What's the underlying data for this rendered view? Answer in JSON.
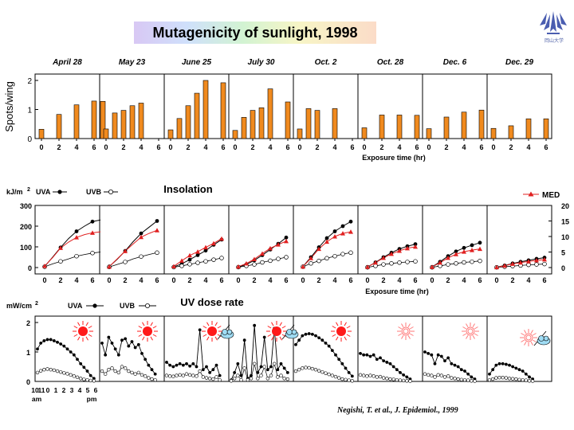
{
  "title": "Mutagenicity of sunlight, 1998",
  "logo_text": "岡山大学",
  "citation": "Negishi, T. et al., J. Epidemiol., 1999",
  "colors": {
    "bar": "#f08a1e",
    "uva": "#000000",
    "uvb": "#000000",
    "med": "#e02020",
    "sun_red": "#ff1a1a",
    "sun_pink": "#ff7a7a",
    "cloud": "#9fdcf4"
  },
  "chart_data": [
    {
      "type": "bar",
      "ylabel": "Spots/wing",
      "xlabel": "Exposure time  (hr)",
      "ylim": [
        0,
        2.2
      ],
      "yticks": [
        "2",
        "1",
        "0"
      ],
      "xticks": [
        "0",
        "2",
        "4",
        "6"
      ],
      "panels": [
        {
          "label": "April 28",
          "x": [
            0,
            2,
            4,
            6,
            7
          ],
          "values": [
            0.32,
            0.83,
            1.16,
            1.29,
            1.28
          ]
        },
        {
          "label": "May 23",
          "x": [
            0,
            1,
            2,
            3,
            4
          ],
          "values": [
            0.33,
            0.88,
            0.97,
            1.13,
            1.22
          ]
        },
        {
          "label": "June 25",
          "x": [
            0,
            1,
            2,
            3,
            4,
            6
          ],
          "values": [
            0.3,
            0.69,
            1.13,
            1.56,
            2.0,
            1.92
          ]
        },
        {
          "label": "July 30",
          "x": [
            0,
            1,
            2,
            3,
            4,
            6
          ],
          "values": [
            0.28,
            0.73,
            0.97,
            1.06,
            1.71,
            1.26
          ]
        },
        {
          "label": "Oct. 2",
          "x": [
            0,
            1,
            2,
            4
          ],
          "values": [
            0.33,
            1.03,
            0.97,
            1.03
          ]
        },
        {
          "label": "Oct. 28",
          "x": [
            0,
            2,
            4,
            6
          ],
          "values": [
            0.37,
            0.81,
            0.81,
            0.8
          ]
        },
        {
          "label": "Dec. 6",
          "x": [
            0,
            2,
            4,
            6
          ],
          "values": [
            0.34,
            0.74,
            0.91,
            0.98
          ]
        },
        {
          "label": "Dec. 29",
          "x": [
            0,
            2,
            4,
            6
          ],
          "values": [
            0.35,
            0.44,
            0.68,
            0.68
          ]
        }
      ]
    },
    {
      "type": "line",
      "title": "Insolation",
      "yunit": "kJ/m2",
      "xlabel": "Exposure time  (hr)",
      "ylim": [
        0,
        300
      ],
      "yticks": [
        "300",
        "200",
        "100",
        "0"
      ],
      "ylim_right": [
        0,
        20
      ],
      "yticks_right": [
        "20",
        "15",
        "10",
        "5",
        "0"
      ],
      "xticks": [
        "0",
        "2",
        "4",
        "6"
      ],
      "legend": {
        "uva": "UVA",
        "uvb": "UVB",
        "med": "MED"
      },
      "panels": [
        {
          "x": [
            0,
            1,
            2,
            3,
            4,
            5,
            6,
            7
          ],
          "uva": [
            5,
            50,
            97,
            140,
            175,
            200,
            222,
            230
          ],
          "uvb": [
            4,
            18,
            30,
            42,
            55,
            63,
            70,
            75
          ],
          "med": [
            0.5,
            3.2,
            6.3,
            8.2,
            9.7,
            10.6,
            11.2,
            11.5
          ]
        },
        {
          "x": [
            0,
            1,
            2,
            3,
            4,
            5,
            6
          ],
          "uva": [
            5,
            40,
            80,
            125,
            165,
            195,
            225
          ],
          "uvb": [
            3,
            15,
            27,
            42,
            53,
            63,
            72
          ],
          "med": [
            0.3,
            2.8,
            5.3,
            7.6,
            9.8,
            11.0,
            12.0
          ]
        },
        {
          "x": [
            0,
            1,
            2,
            3,
            4,
            5,
            6
          ],
          "uva": [
            3,
            18,
            38,
            60,
            82,
            110,
            135
          ],
          "uvb": [
            2,
            8,
            16,
            23,
            30,
            38,
            46
          ],
          "med": [
            0.4,
            2.2,
            3.9,
            5.1,
            6.5,
            7.8,
            9.3
          ]
        },
        {
          "x": [
            0,
            1,
            2,
            3,
            4,
            5,
            6
          ],
          "uva": [
            3,
            15,
            35,
            60,
            87,
            115,
            145
          ],
          "uvb": [
            2,
            8,
            15,
            25,
            33,
            42,
            50
          ],
          "med": [
            0.3,
            1.3,
            2.7,
            4.5,
            6.2,
            7.4,
            8.5
          ]
        },
        {
          "x": [
            0,
            1,
            2,
            3,
            4,
            5,
            6
          ],
          "uva": [
            5,
            50,
            98,
            142,
            175,
            200,
            222
          ],
          "uvb": [
            4,
            20,
            32,
            45,
            55,
            65,
            72
          ],
          "med": [
            0.3,
            3.0,
            6.0,
            8.3,
            10.0,
            11.0,
            11.5
          ]
        },
        {
          "x": [
            0,
            1,
            2,
            3,
            4,
            5,
            6
          ],
          "uva": [
            3,
            25,
            50,
            72,
            90,
            103,
            113
          ],
          "uvb": [
            1,
            8,
            15,
            20,
            24,
            27,
            30
          ],
          "med": [
            0.2,
            1.6,
            3.1,
            4.4,
            5.4,
            6.2,
            6.7
          ]
        },
        {
          "x": [
            0,
            1,
            2,
            3,
            4,
            5,
            6
          ],
          "uva": [
            3,
            28,
            55,
            78,
            95,
            108,
            120
          ],
          "uvb": [
            1,
            8,
            15,
            20,
            25,
            28,
            32
          ],
          "med": [
            0.2,
            1.6,
            3.1,
            4.3,
            5.1,
            5.6,
            6.0
          ]
        },
        {
          "x": [
            0,
            1,
            2,
            3,
            4,
            5,
            6
          ],
          "uva": [
            2,
            10,
            20,
            28,
            35,
            42,
            48
          ],
          "uvb": [
            1,
            4,
            7,
            10,
            13,
            15,
            17
          ],
          "med": [
            0.1,
            0.6,
            1.2,
            1.6,
            2.0,
            2.3,
            2.6
          ]
        }
      ]
    },
    {
      "type": "line",
      "title": "UV dose rate",
      "yunit": "mW/cm2",
      "ylim": [
        0,
        2
      ],
      "yticks": [
        "2",
        "1",
        "0"
      ],
      "xticks": [
        "10",
        "11",
        "0",
        "1",
        "2",
        "3",
        "4",
        "5",
        "6"
      ],
      "xsub": [
        "am",
        "pm"
      ],
      "legend": {
        "uva": "UVA",
        "uvb": "UVB"
      },
      "panels": [
        {
          "weather": "sunny",
          "uva": [
            1.1,
            1.3,
            1.38,
            1.42,
            1.42,
            1.38,
            1.33,
            1.27,
            1.2,
            1.1,
            1.0,
            0.9,
            0.75,
            0.6,
            0.48,
            0.35,
            0.2,
            0.1
          ],
          "uvb": [
            0.3,
            0.36,
            0.4,
            0.42,
            0.4,
            0.38,
            0.35,
            0.32,
            0.29,
            0.26,
            0.22,
            0.18,
            0.14,
            0.1,
            0.07,
            0.05,
            0.03,
            0.02
          ]
        },
        {
          "weather": "sunny",
          "uva": [
            1.3,
            0.9,
            1.5,
            1.3,
            1.1,
            0.9,
            1.4,
            1.45,
            1.2,
            1.35,
            1.15,
            1.25,
            0.95,
            0.75,
            0.55,
            0.4,
            0.25
          ],
          "uvb": [
            0.35,
            0.25,
            0.4,
            0.45,
            0.35,
            0.3,
            0.5,
            0.45,
            0.35,
            0.3,
            0.25,
            0.3,
            0.22,
            0.18,
            0.12,
            0.08,
            0.05
          ]
        },
        {
          "weather": "partly-cloudy",
          "uva": [
            0.65,
            0.55,
            0.5,
            0.55,
            0.6,
            0.55,
            0.6,
            0.52,
            0.6,
            0.5,
            1.75,
            0.4,
            0.5,
            0.3,
            0.4,
            0.55,
            0.2
          ],
          "uvb": [
            0.2,
            0.18,
            0.17,
            0.2,
            0.22,
            0.2,
            0.25,
            0.22,
            0.2,
            0.18,
            0.35,
            0.15,
            0.12,
            0.1,
            0.08,
            0.15,
            0.05
          ]
        },
        {
          "weather": "partly-cloudy",
          "uva": [
            0.05,
            0.3,
            0.6,
            0.2,
            1.4,
            0.1,
            0.2,
            1.9,
            0.3,
            0.5,
            1.5,
            0.4,
            0.5,
            1.8,
            0.4,
            0.6,
            0.45,
            0.3
          ],
          "uvb": [
            0.02,
            0.1,
            0.2,
            0.05,
            0.45,
            0.05,
            0.1,
            0.6,
            0.1,
            0.2,
            0.5,
            0.1,
            0.2,
            0.6,
            0.15,
            0.2,
            0.1,
            0.08
          ]
        },
        {
          "weather": "sunny",
          "uva": [
            1.25,
            1.4,
            1.55,
            1.6,
            1.62,
            1.6,
            1.55,
            1.48,
            1.4,
            1.3,
            1.2,
            1.05,
            0.9,
            0.75,
            0.6,
            0.45,
            0.3,
            0.18
          ],
          "uvb": [
            0.35,
            0.4,
            0.45,
            0.47,
            0.46,
            0.43,
            0.4,
            0.36,
            0.32,
            0.28,
            0.24,
            0.2,
            0.16,
            0.12,
            0.08,
            0.06,
            0.04,
            0.02
          ]
        },
        {
          "weather": "sunny-pale",
          "uva": [
            0.95,
            0.9,
            0.9,
            0.85,
            0.9,
            0.75,
            0.8,
            0.7,
            0.65,
            0.6,
            0.5,
            0.4,
            0.3,
            0.22,
            0.15,
            0.08
          ],
          "uvb": [
            0.22,
            0.2,
            0.18,
            0.2,
            0.18,
            0.15,
            0.16,
            0.12,
            0.1,
            0.08,
            0.07,
            0.05,
            0.04,
            0.03,
            0.02,
            0.01
          ]
        },
        {
          "weather": "sunny-pale",
          "uva": [
            1.0,
            0.95,
            0.9,
            0.6,
            0.9,
            0.85,
            0.7,
            0.8,
            0.6,
            0.55,
            0.5,
            0.4,
            0.35,
            0.25,
            0.15,
            0.08
          ],
          "uvb": [
            0.25,
            0.22,
            0.2,
            0.15,
            0.22,
            0.2,
            0.15,
            0.18,
            0.12,
            0.1,
            0.08,
            0.06,
            0.05,
            0.04,
            0.02,
            0.01
          ]
        },
        {
          "weather": "partly-cloudy-pale",
          "uva": [
            0.25,
            0.4,
            0.55,
            0.6,
            0.6,
            0.58,
            0.55,
            0.5,
            0.45,
            0.4,
            0.35,
            0.25,
            0.15,
            0.08
          ],
          "uvb": [
            0.05,
            0.08,
            0.12,
            0.13,
            0.13,
            0.12,
            0.1,
            0.09,
            0.08,
            0.06,
            0.05,
            0.04,
            0.02,
            0.01
          ]
        }
      ]
    }
  ]
}
